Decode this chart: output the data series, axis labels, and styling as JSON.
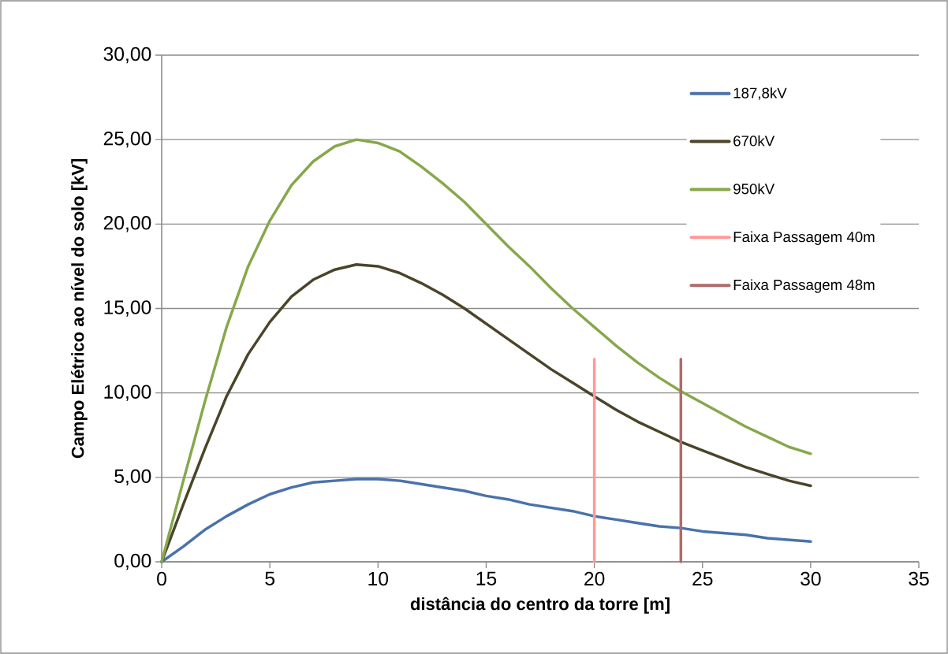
{
  "chart_data": {
    "type": "line",
    "xlabel": "distância do centro da torre [m]",
    "ylabel": "Campo Elétrico ao nível do solo [kV]",
    "x": [
      0,
      1,
      2,
      3,
      4,
      5,
      6,
      7,
      8,
      9,
      10,
      11,
      12,
      13,
      14,
      15,
      16,
      17,
      18,
      19,
      20,
      21,
      22,
      23,
      24,
      25,
      26,
      27,
      28,
      29,
      30
    ],
    "series": [
      {
        "name": "187,8kV",
        "color": "#4a72aa",
        "values": [
          0,
          0.9,
          1.9,
          2.7,
          3.4,
          4.0,
          4.4,
          4.7,
          4.8,
          4.9,
          4.9,
          4.8,
          4.6,
          4.4,
          4.2,
          3.9,
          3.7,
          3.4,
          3.2,
          3.0,
          2.7,
          2.5,
          2.3,
          2.1,
          2.0,
          1.8,
          1.7,
          1.6,
          1.4,
          1.3,
          1.2
        ]
      },
      {
        "name": "670kV",
        "color": "#4a4429",
        "values": [
          0,
          3.4,
          6.7,
          9.8,
          12.3,
          14.2,
          15.7,
          16.7,
          17.3,
          17.6,
          17.5,
          17.1,
          16.5,
          15.8,
          15.0,
          14.1,
          13.2,
          12.3,
          11.4,
          10.6,
          9.8,
          9.0,
          8.3,
          7.7,
          7.1,
          6.6,
          6.1,
          5.6,
          5.2,
          4.8,
          4.5
        ]
      },
      {
        "name": "950kV",
        "color": "#86a84b",
        "values": [
          0,
          4.8,
          9.5,
          13.9,
          17.5,
          20.2,
          22.3,
          23.7,
          24.6,
          25.0,
          24.8,
          24.3,
          23.4,
          22.4,
          21.3,
          20.0,
          18.7,
          17.5,
          16.2,
          15.0,
          13.9,
          12.8,
          11.8,
          10.9,
          10.1,
          9.4,
          8.7,
          8.0,
          7.4,
          6.8,
          6.4
        ]
      },
      {
        "name": "Faixa Passagem 40m",
        "type": "bar",
        "color": "#ff9999",
        "x": [
          20
        ],
        "values": [
          12
        ]
      },
      {
        "name": "Faixa Passagem 48m",
        "type": "bar",
        "color": "#b06a6a",
        "x": [
          24
        ],
        "values": [
          12
        ]
      }
    ],
    "xlim": [
      0,
      35
    ],
    "xticks": [
      0,
      5,
      10,
      15,
      20,
      25,
      30,
      35
    ],
    "ylim": [
      0,
      30
    ],
    "yticks": [
      {
        "value": 0,
        "label": "0,00"
      },
      {
        "value": 5,
        "label": "5,00"
      },
      {
        "value": 10,
        "label": "10,00"
      },
      {
        "value": 15,
        "label": "15,00"
      },
      {
        "value": 20,
        "label": "20,00"
      },
      {
        "value": 25,
        "label": "25,00"
      },
      {
        "value": 30,
        "label": "30,00"
      }
    ],
    "grid": "y",
    "legend": "top right",
    "marker": "none",
    "line_style": "solid"
  }
}
